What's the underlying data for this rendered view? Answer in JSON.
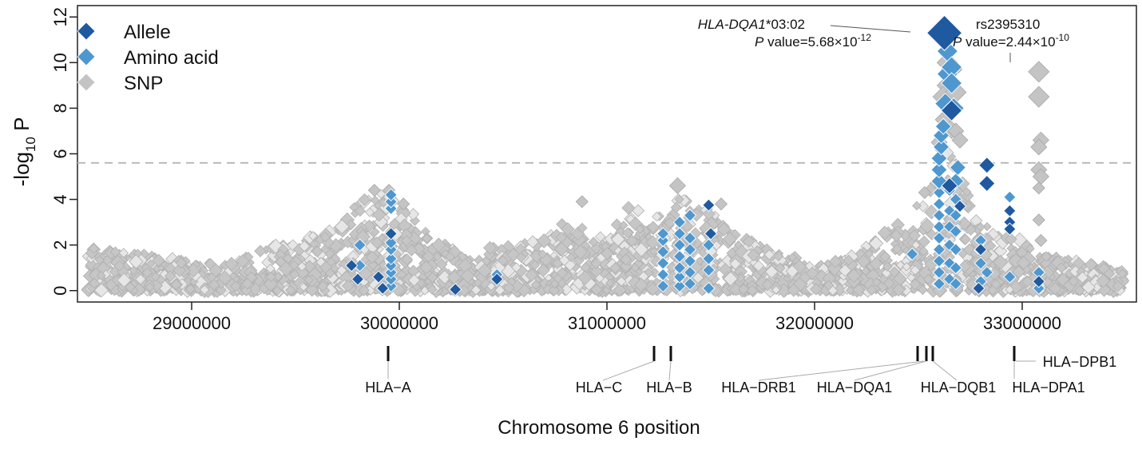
{
  "chart_data": {
    "type": "scatter",
    "title": "",
    "xlabel": "Chromosome 6 position",
    "ylabel_main": "-log",
    "ylabel_sub": "10",
    "ylabel_tail": " P",
    "xlim": [
      28450000,
      33550000
    ],
    "ylim": [
      -0.5,
      12.5
    ],
    "x_ticks": [
      29000000,
      30000000,
      31000000,
      32000000,
      33000000
    ],
    "x_tick_labels": [
      "29000000",
      "30000000",
      "31000000",
      "32000000",
      "33000000"
    ],
    "y_ticks": [
      0,
      2,
      4,
      6,
      8,
      10,
      12
    ],
    "y_tick_labels": [
      "0",
      "2",
      "4",
      "6",
      "8",
      "10",
      "12"
    ],
    "significance_threshold": 5.6,
    "legend": [
      {
        "name": "Allele",
        "color": "#1f5aa0"
      },
      {
        "name": "Amino acid",
        "color": "#4f98cf"
      },
      {
        "name": "SNP",
        "color": "#c4c4c4"
      }
    ],
    "series": [
      {
        "name": "Allele",
        "color": "#1f5aa0",
        "points": [
          {
            "x": 29770000,
            "y": 1.1
          },
          {
            "x": 29800000,
            "y": 0.5
          },
          {
            "x": 29900000,
            "y": 0.6
          },
          {
            "x": 29920000,
            "y": 0.1
          },
          {
            "x": 29960000,
            "y": 2.5
          },
          {
            "x": 30270000,
            "y": 0.05
          },
          {
            "x": 30470000,
            "y": 0.5
          },
          {
            "x": 31490000,
            "y": 3.75
          },
          {
            "x": 31500000,
            "y": 2.5
          },
          {
            "x": 32660000,
            "y": 7.9
          },
          {
            "x": 32700000,
            "y": 3.7
          },
          {
            "x": 32650000,
            "y": 4.6
          },
          {
            "x": 32790000,
            "y": 0.1
          },
          {
            "x": 32800000,
            "y": 1.8
          },
          {
            "x": 32830000,
            "y": 5.5
          },
          {
            "x": 32830000,
            "y": 4.7
          },
          {
            "x": 32940000,
            "y": 3.5
          },
          {
            "x": 32940000,
            "y": 3.0
          },
          {
            "x": 32940000,
            "y": 2.7
          },
          {
            "x": 33080000,
            "y": 0.4
          }
        ]
      },
      {
        "name": "Amino acid",
        "color": "#4f98cf",
        "points": [
          {
            "x": 29960000,
            "y": 0.2
          },
          {
            "x": 29960000,
            "y": 0.5
          },
          {
            "x": 29960000,
            "y": 0.8
          },
          {
            "x": 29960000,
            "y": 1.1
          },
          {
            "x": 29960000,
            "y": 1.4
          },
          {
            "x": 29960000,
            "y": 1.8
          },
          {
            "x": 29960000,
            "y": 2.1
          },
          {
            "x": 29960000,
            "y": 3.6
          },
          {
            "x": 29960000,
            "y": 3.9
          },
          {
            "x": 29960000,
            "y": 4.2
          },
          {
            "x": 29810000,
            "y": 1.1
          },
          {
            "x": 29810000,
            "y": 2.0
          },
          {
            "x": 30470000,
            "y": 0.7
          },
          {
            "x": 31270000,
            "y": 0.2
          },
          {
            "x": 31270000,
            "y": 0.7
          },
          {
            "x": 31270000,
            "y": 1.2
          },
          {
            "x": 31270000,
            "y": 1.7
          },
          {
            "x": 31270000,
            "y": 2.2
          },
          {
            "x": 31270000,
            "y": 2.5
          },
          {
            "x": 31350000,
            "y": 0.2
          },
          {
            "x": 31350000,
            "y": 0.6
          },
          {
            "x": 31350000,
            "y": 1.0
          },
          {
            "x": 31350000,
            "y": 1.5
          },
          {
            "x": 31350000,
            "y": 2.0
          },
          {
            "x": 31350000,
            "y": 2.5
          },
          {
            "x": 31350000,
            "y": 3.0
          },
          {
            "x": 31400000,
            "y": 0.3
          },
          {
            "x": 31400000,
            "y": 0.8
          },
          {
            "x": 31400000,
            "y": 1.3
          },
          {
            "x": 31400000,
            "y": 1.8
          },
          {
            "x": 31400000,
            "y": 2.3
          },
          {
            "x": 31400000,
            "y": 3.3
          },
          {
            "x": 31490000,
            "y": 0.1
          },
          {
            "x": 31490000,
            "y": 0.9
          },
          {
            "x": 31490000,
            "y": 1.4
          },
          {
            "x": 31490000,
            "y": 2.0
          },
          {
            "x": 32470000,
            "y": 1.6
          },
          {
            "x": 32600000,
            "y": 0.3
          },
          {
            "x": 32600000,
            "y": 0.8
          },
          {
            "x": 32600000,
            "y": 1.3
          },
          {
            "x": 32600000,
            "y": 1.8
          },
          {
            "x": 32600000,
            "y": 2.3
          },
          {
            "x": 32600000,
            "y": 2.8
          },
          {
            "x": 32600000,
            "y": 3.3
          },
          {
            "x": 32600000,
            "y": 3.8
          },
          {
            "x": 32600000,
            "y": 4.3
          },
          {
            "x": 32600000,
            "y": 4.8
          },
          {
            "x": 32600000,
            "y": 5.3
          },
          {
            "x": 32600000,
            "y": 5.8
          },
          {
            "x": 32610000,
            "y": 6.3
          },
          {
            "x": 32610000,
            "y": 6.8
          },
          {
            "x": 32620000,
            "y": 7.2
          },
          {
            "x": 32630000,
            "y": 8.2
          },
          {
            "x": 32640000,
            "y": 9.5
          },
          {
            "x": 32640000,
            "y": 10.5
          },
          {
            "x": 32650000,
            "y": 0.5
          },
          {
            "x": 32650000,
            "y": 1.2
          },
          {
            "x": 32650000,
            "y": 2.0
          },
          {
            "x": 32650000,
            "y": 2.8
          },
          {
            "x": 32650000,
            "y": 3.5
          },
          {
            "x": 32650000,
            "y": 4.4
          },
          {
            "x": 32660000,
            "y": 9.8
          },
          {
            "x": 32660000,
            "y": 9.1
          },
          {
            "x": 32670000,
            "y": 8.0
          },
          {
            "x": 32680000,
            "y": 0.3
          },
          {
            "x": 32680000,
            "y": 1.0
          },
          {
            "x": 32680000,
            "y": 1.8
          },
          {
            "x": 32680000,
            "y": 2.6
          },
          {
            "x": 32680000,
            "y": 3.3
          },
          {
            "x": 32680000,
            "y": 4.0
          },
          {
            "x": 32680000,
            "y": 4.8
          },
          {
            "x": 32690000,
            "y": 5.4
          },
          {
            "x": 32800000,
            "y": 0.4
          },
          {
            "x": 32800000,
            "y": 1.2
          },
          {
            "x": 32800000,
            "y": 2.2
          },
          {
            "x": 32830000,
            "y": 0.8
          },
          {
            "x": 32940000,
            "y": 0.6
          },
          {
            "x": 32940000,
            "y": 4.1
          },
          {
            "x": 33080000,
            "y": 0.1
          },
          {
            "x": 33080000,
            "y": 0.8
          }
        ]
      },
      {
        "name": "SNP",
        "color": "#c4c4c4",
        "points": [
          {
            "x": 32640000,
            "y": 10.0
          },
          {
            "x": 32660000,
            "y": 9.7
          },
          {
            "x": 32640000,
            "y": 9.0
          },
          {
            "x": 32620000,
            "y": 8.5
          },
          {
            "x": 32680000,
            "y": 8.7
          },
          {
            "x": 32620000,
            "y": 7.5
          },
          {
            "x": 32680000,
            "y": 7.0
          },
          {
            "x": 32600000,
            "y": 6.5
          },
          {
            "x": 32700000,
            "y": 6.6
          },
          {
            "x": 33080000,
            "y": 9.6
          },
          {
            "x": 33080000,
            "y": 8.5
          },
          {
            "x": 33090000,
            "y": 6.6
          },
          {
            "x": 33080000,
            "y": 6.3
          },
          {
            "x": 33080000,
            "y": 5.3
          },
          {
            "x": 33090000,
            "y": 5.0
          },
          {
            "x": 33080000,
            "y": 4.5
          },
          {
            "x": 33080000,
            "y": 3.1
          },
          {
            "x": 33090000,
            "y": 2.2
          },
          {
            "x": 29950000,
            "y": 4.4
          },
          {
            "x": 29880000,
            "y": 4.4
          },
          {
            "x": 30020000,
            "y": 3.8
          },
          {
            "x": 31340000,
            "y": 4.6
          },
          {
            "x": 31550000,
            "y": 3.8
          },
          {
            "x": 30880000,
            "y": 3.9
          },
          {
            "x": 32530000,
            "y": 4.3
          }
        ]
      }
    ],
    "annotations": [
      {
        "label_main": "HLA-DQA1",
        "label_tail": "*03:02",
        "p_prefix": "P",
        "p_value": " value=5.68×10",
        "p_exp": "-12",
        "x": 32610000,
        "y": 11.3,
        "color": "#1f5aa0"
      },
      {
        "label": "rs2395310",
        "p_prefix": "P",
        "p_value": " value=2.44×10",
        "p_exp": "-10",
        "x": 33080000,
        "y": 9.6
      }
    ],
    "genes": [
      {
        "name": "HLA−A",
        "x": 29910000
      },
      {
        "name": "HLA−C",
        "x": 31240000
      },
      {
        "name": "HLA−B",
        "x": 31320000
      },
      {
        "name": "HLA−DRB1",
        "x": 32550000
      },
      {
        "name": "HLA−DQA1",
        "x": 32610000
      },
      {
        "name": "HLA−DQB1",
        "x": 32630000
      },
      {
        "name": "HLA−DPA1",
        "x": 33040000
      },
      {
        "name": "HLA−DPB1",
        "x": 33050000
      }
    ]
  }
}
